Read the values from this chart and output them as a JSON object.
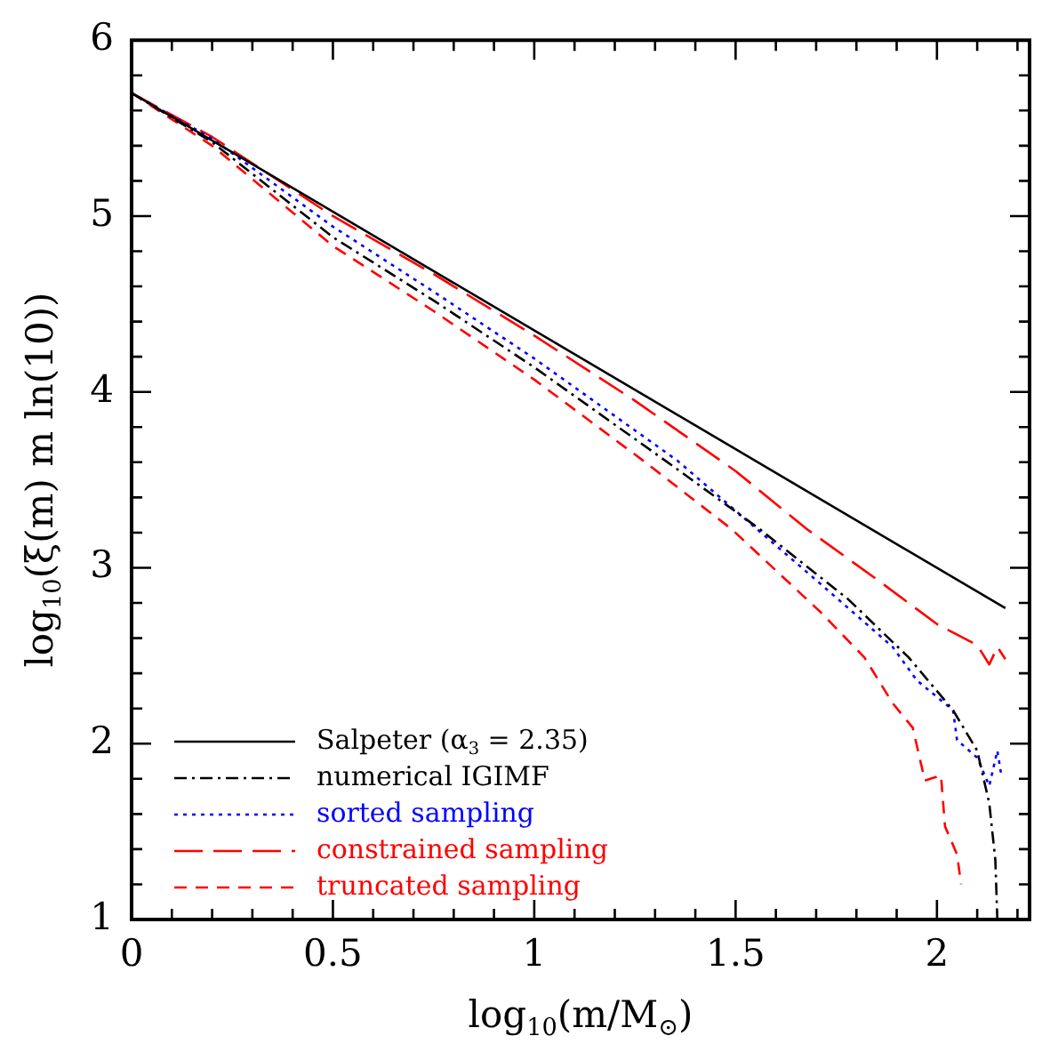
{
  "chart_data": {
    "type": "line",
    "xlabel": "log$_{10}$(m/M$_{⊙}$)",
    "ylabel": "log$_{10}$(ξ(m) m ln(10))",
    "xlim": [
      0,
      2.23
    ],
    "ylim": [
      1,
      6
    ],
    "xticks": [
      0,
      {
        "value": 0.1,
        "label": null
      },
      {
        "value": 0.2,
        "label": null
      },
      {
        "value": 0.3,
        "label": null
      },
      {
        "value": 0.4,
        "label": null
      },
      0.5,
      {
        "value": 0.6,
        "label": null
      },
      {
        "value": 0.7,
        "label": null
      },
      {
        "value": 0.8,
        "label": null
      },
      {
        "value": 0.9,
        "label": null
      },
      1,
      {
        "value": 1.1,
        "label": null
      },
      {
        "value": 1.2,
        "label": null
      },
      {
        "value": 1.3,
        "label": null
      },
      {
        "value": 1.4,
        "label": null
      },
      1.5,
      {
        "value": 1.6,
        "label": null
      },
      {
        "value": 1.7,
        "label": null
      },
      {
        "value": 1.8,
        "label": null
      },
      {
        "value": 1.9,
        "label": null
      },
      2,
      {
        "value": 2.1,
        "label": null
      },
      {
        "value": 2.2,
        "label": null
      }
    ],
    "yticks": [
      1,
      {
        "value": 1.2,
        "label": null
      },
      {
        "value": 1.4,
        "label": null
      },
      {
        "value": 1.6,
        "label": null
      },
      {
        "value": 1.8,
        "label": null
      },
      2,
      {
        "value": 2.2,
        "label": null
      },
      {
        "value": 2.4,
        "label": null
      },
      {
        "value": 2.6,
        "label": null
      },
      {
        "value": 2.8,
        "label": null
      },
      3,
      {
        "value": 3.2,
        "label": null
      },
      {
        "value": 3.4,
        "label": null
      },
      {
        "value": 3.6,
        "label": null
      },
      {
        "value": 3.8,
        "label": null
      },
      4,
      {
        "value": 4.2,
        "label": null
      },
      {
        "value": 4.4,
        "label": null
      },
      {
        "value": 4.6,
        "label": null
      },
      {
        "value": 4.8,
        "label": null
      },
      5,
      {
        "value": 5.2,
        "label": null
      },
      {
        "value": 5.4,
        "label": null
      },
      {
        "value": 5.6,
        "label": null
      },
      {
        "value": 5.8,
        "label": null
      },
      6
    ],
    "legend": "bottom left",
    "grid": false,
    "marker": "none",
    "series": [
      {
        "name": "Salpeter (α$_{3}$ = 2.35)",
        "color": "#000000",
        "line_style": "solid",
        "x": [
          0,
          2.17
        ],
        "values": [
          5.7,
          2.77
        ]
      },
      {
        "name": "numerical IGIMF",
        "color": "#000000",
        "line_style": "dashdot",
        "x": [
          0,
          0.2,
          0.5,
          0.75,
          1,
          1.325,
          1.56,
          1.78,
          1.93,
          2.04,
          2.1,
          2.13,
          2.145,
          2.15
        ],
        "values": [
          5.7,
          5.42,
          4.88,
          4.52,
          4.14,
          3.61,
          3.22,
          2.82,
          2.49,
          2.19,
          1.96,
          1.66,
          1.34,
          1.0
        ]
      },
      {
        "name": "sorted sampling",
        "color": "#0000ff",
        "line_style": "dotted",
        "x": [
          0,
          0.2,
          0.5,
          0.75,
          1,
          1.355,
          1.7,
          1.89,
          1.95,
          2.04,
          2.05,
          2.1,
          2.13,
          2.15,
          2.16
        ],
        "values": [
          5.7,
          5.44,
          4.94,
          4.57,
          4.19,
          3.61,
          2.93,
          2.55,
          2.36,
          2.19,
          2.02,
          1.92,
          1.76,
          1.96,
          1.82
        ]
      },
      {
        "name": "constrained sampling",
        "color": "#ff0000",
        "line_style": "longdashed",
        "x": [
          0,
          0.2,
          0.5,
          0.75,
          1,
          1.25,
          1.5,
          1.677,
          1.853,
          2.0,
          2.1,
          2.13,
          2.15,
          2.17
        ],
        "values": [
          5.7,
          5.45,
          5.0,
          4.67,
          4.32,
          3.95,
          3.55,
          3.22,
          2.93,
          2.68,
          2.56,
          2.45,
          2.55,
          2.48
        ]
      },
      {
        "name": "truncated sampling",
        "color": "#ff0000",
        "line_style": "dashed",
        "x": [
          0,
          0.2,
          0.5,
          0.75,
          1,
          1.27,
          1.49,
          1.71,
          1.82,
          1.89,
          1.94,
          1.97,
          2.01,
          2.02,
          2.05,
          2.06
        ],
        "values": [
          5.7,
          5.4,
          4.83,
          4.46,
          4.07,
          3.61,
          3.22,
          2.75,
          2.49,
          2.23,
          2.09,
          1.79,
          1.82,
          1.53,
          1.37,
          1.2
        ]
      }
    ]
  }
}
